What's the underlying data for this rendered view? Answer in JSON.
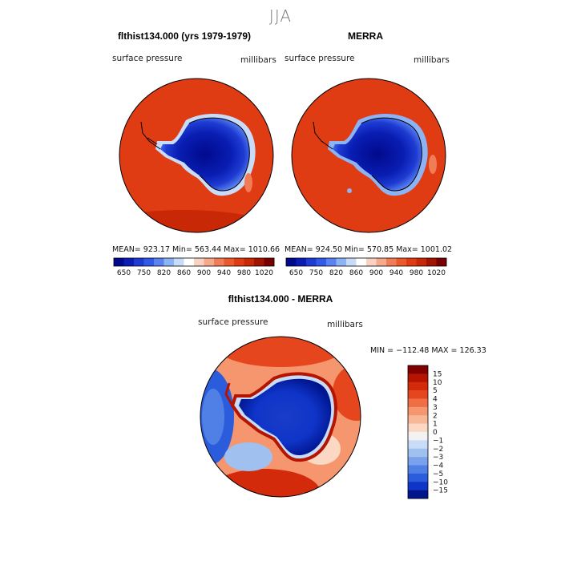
{
  "page": {
    "title": "JJA"
  },
  "chart_data": [
    {
      "type": "heatmap",
      "projection": "south-polar-stereographic",
      "title": "flthist134.000 (yrs 1979-1979)",
      "left_label": "surface pressure",
      "right_label": "millibars",
      "stats": {
        "mean": "923.17",
        "min": "563.44",
        "max": "1010.66"
      },
      "stats_text": "MEAN= 923.17    Min= 563.44    Max= 1010.66",
      "colorbar": {
        "orientation": "horizontal",
        "levels": [
          650,
          700,
          750,
          800,
          820,
          840,
          860,
          880,
          900,
          920,
          940,
          960,
          980,
          1000,
          1020
        ],
        "tick_labels": [
          "650",
          "750",
          "820",
          "860",
          "900",
          "940",
          "980",
          "1020"
        ],
        "colors": [
          "#000a8c",
          "#0a1eb4",
          "#1e3cd2",
          "#325ae6",
          "#5a82f0",
          "#8cb4f5",
          "#c8dcfa",
          "#ffffff",
          "#fad2c3",
          "#f5aa8c",
          "#f07d55",
          "#eb5a2d",
          "#e03c14",
          "#c82806",
          "#a01400",
          "#780000"
        ]
      }
    },
    {
      "type": "heatmap",
      "projection": "south-polar-stereographic",
      "title": "MERRA",
      "left_label": "surface pressure",
      "right_label": "millibars",
      "stats": {
        "mean": "924.50",
        "min": "570.85",
        "max": "1001.02"
      },
      "stats_text": "MEAN= 924.50    Min= 570.85    Max= 1001.02",
      "colorbar": {
        "orientation": "horizontal",
        "levels": [
          650,
          700,
          750,
          800,
          820,
          840,
          860,
          880,
          900,
          920,
          940,
          960,
          980,
          1000,
          1020
        ],
        "tick_labels": [
          "650",
          "750",
          "820",
          "860",
          "900",
          "940",
          "980",
          "1020"
        ],
        "colors": [
          "#000a8c",
          "#0a1eb4",
          "#1e3cd2",
          "#325ae6",
          "#5a82f0",
          "#8cb4f5",
          "#c8dcfa",
          "#ffffff",
          "#fad2c3",
          "#f5aa8c",
          "#f07d55",
          "#eb5a2d",
          "#e03c14",
          "#c82806",
          "#a01400",
          "#780000"
        ]
      }
    },
    {
      "type": "heatmap",
      "projection": "south-polar-stereographic",
      "title": "flthist134.000 - MERRA",
      "left_label": "surface pressure",
      "right_label": "millibars",
      "stats": {
        "min": "-112.48",
        "max": "126.33"
      },
      "stats_text": "MIN = −112.48  MAX = 126.33",
      "colorbar": {
        "orientation": "vertical",
        "levels": [
          15,
          10,
          5,
          4,
          3,
          2,
          1,
          0,
          -1,
          -2,
          -3,
          -4,
          -5,
          -10,
          -15
        ],
        "tick_labels": [
          "15",
          "10",
          "5",
          "4",
          "3",
          "2",
          "1",
          "0",
          "−1",
          "−2",
          "−3",
          "−4",
          "−5",
          "−10",
          "−15"
        ],
        "colors": [
          "#800000",
          "#b41400",
          "#d22a0a",
          "#e6461e",
          "#f06e46",
          "#f5966e",
          "#f8b898",
          "#fad8c4",
          "#f2f2f2",
          "#c8dcf8",
          "#a0c0f0",
          "#7aa2ec",
          "#5080e6",
          "#2a5cdc",
          "#0f34c8",
          "#00148c"
        ]
      }
    }
  ]
}
